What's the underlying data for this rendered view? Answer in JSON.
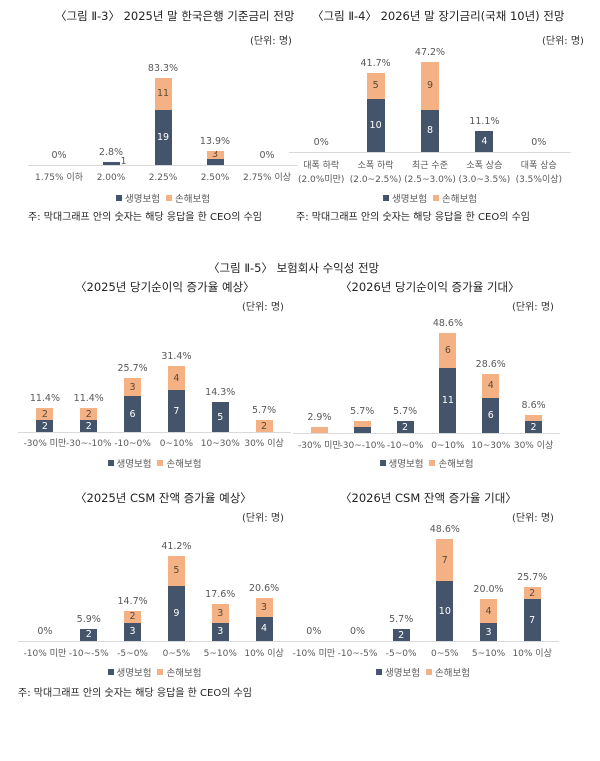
{
  "colors": {
    "life": "#44546a",
    "nonlife": "#f4b183"
  },
  "legend": {
    "life": "생명보험",
    "nonlife": "손해보험"
  },
  "note": "주: 막대그래프 안의 숫자는 해당 응답을 한 CEO의 수임",
  "unit": "(단위: 명)",
  "fig5_title": "〈그림 Ⅱ-5〉 보험회사 수익성 전망",
  "chart_data": [
    {
      "id": "fig3",
      "type": "bar",
      "stacked": true,
      "title": "〈그림 Ⅱ-3〉 2025년 말 한국은행 기준금리 전망",
      "unit": "(단위: 명)",
      "categories": [
        "1.75% 이하",
        "2.00%",
        "2.25%",
        "2.50%",
        "2.75% 이상"
      ],
      "series": [
        {
          "name": "생명보험",
          "values": [
            0,
            1,
            19,
            2,
            0
          ]
        },
        {
          "name": "손해보험",
          "values": [
            0,
            0,
            11,
            3,
            0
          ]
        }
      ],
      "percent_labels": [
        "0%",
        "2.8%",
        "83.3%",
        "13.9%",
        "0%"
      ],
      "legend_position": "bottom"
    },
    {
      "id": "fig4",
      "type": "bar",
      "stacked": true,
      "title": "〈그림 Ⅱ-4〉 2026년 말 장기금리(국채 10년) 전망",
      "unit": "(단위: 명)",
      "categories": [
        "대폭 하락\n(2.0%미만)",
        "소폭 하락\n(2.0~2.5%)",
        "최근 수준\n(2.5~3.0%)",
        "소폭 상승\n(3.0~3.5%)",
        "대폭 상승\n(3.5%이상)"
      ],
      "series": [
        {
          "name": "생명보험",
          "values": [
            0,
            10,
            8,
            4,
            0
          ]
        },
        {
          "name": "손해보험",
          "values": [
            0,
            5,
            9,
            0,
            0
          ]
        }
      ],
      "percent_labels": [
        "0%",
        "41.7%",
        "47.2%",
        "11.1%",
        "0%"
      ],
      "legend_position": "bottom"
    },
    {
      "id": "fig5a",
      "type": "bar",
      "stacked": true,
      "title": "〈2025년 당기순이익 증가율 예상〉",
      "unit": "(단위: 명)",
      "categories": [
        "-30% 미만",
        "-30~-10%",
        "-10~0%",
        "0~10%",
        "10~30%",
        "30% 이상"
      ],
      "series": [
        {
          "name": "생명보험",
          "values": [
            2,
            2,
            6,
            7,
            5,
            0
          ]
        },
        {
          "name": "손해보험",
          "values": [
            2,
            2,
            3,
            4,
            0,
            2
          ]
        }
      ],
      "percent_labels": [
        "11.4%",
        "11.4%",
        "25.7%",
        "31.4%",
        "14.3%",
        "5.7%"
      ],
      "legend_position": "bottom"
    },
    {
      "id": "fig5b",
      "type": "bar",
      "stacked": true,
      "title": "〈2026년 당기순이익 증가율 기대〉",
      "unit": "(단위: 명)",
      "categories": [
        "-30% 미만",
        "-30~-10%",
        "-10~0%",
        "0~10%",
        "10~30%",
        "30% 이상"
      ],
      "series": [
        {
          "name": "생명보험",
          "values": [
            0,
            1,
            2,
            11,
            6,
            2
          ]
        },
        {
          "name": "손해보험",
          "values": [
            1,
            1,
            0,
            6,
            4,
            1
          ]
        }
      ],
      "percent_labels": [
        "2.9%",
        "5.7%",
        "5.7%",
        "48.6%",
        "28.6%",
        "8.6%"
      ],
      "legend_position": "bottom"
    },
    {
      "id": "fig5c",
      "type": "bar",
      "stacked": true,
      "title": "〈2025년 CSM 잔액 증가율 예상〉",
      "unit": "(단위: 명)",
      "categories": [
        "-10% 미만",
        "-10~-5%",
        "-5~0%",
        "0~5%",
        "5~10%",
        "10% 이상"
      ],
      "series": [
        {
          "name": "생명보험",
          "values": [
            0,
            2,
            3,
            9,
            3,
            4
          ]
        },
        {
          "name": "손해보험",
          "values": [
            0,
            0,
            2,
            5,
            3,
            3
          ]
        }
      ],
      "percent_labels": [
        "0%",
        "5.9%",
        "14.7%",
        "41.2%",
        "17.6%",
        "20.6%"
      ],
      "legend_position": "bottom"
    },
    {
      "id": "fig5d",
      "type": "bar",
      "stacked": true,
      "title": "〈2026년 CSM 잔액 증가율 기대〉",
      "unit": "(단위: 명)",
      "categories": [
        "-10% 미만",
        "-10~-5%",
        "-5~0%",
        "0~5%",
        "5~10%",
        "10% 이상"
      ],
      "series": [
        {
          "name": "생명보험",
          "values": [
            0,
            0,
            2,
            10,
            3,
            7
          ]
        },
        {
          "name": "손해보험",
          "values": [
            0,
            0,
            0,
            7,
            4,
            2
          ]
        }
      ],
      "percent_labels": [
        "0%",
        "0%",
        "5.7%",
        "48.6%",
        "20.0%",
        "25.7%"
      ],
      "legend_position": "bottom"
    }
  ]
}
